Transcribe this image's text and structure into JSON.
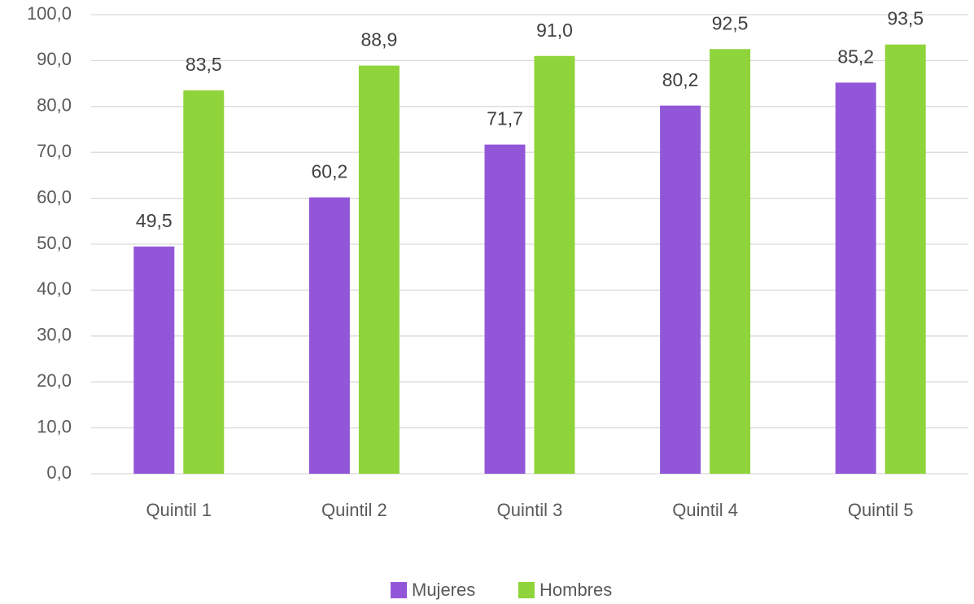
{
  "chart_data": {
    "type": "bar",
    "categories": [
      "Quintil 1",
      "Quintil 2",
      "Quintil 3",
      "Quintil 4",
      "Quintil 5"
    ],
    "series": [
      {
        "name": "Mujeres",
        "color": "#9257d8",
        "values": [
          49.5,
          60.2,
          71.7,
          80.2,
          85.2
        ],
        "value_labels": [
          "49,5",
          "60,2",
          "71,7",
          "80,2",
          "85,2"
        ]
      },
      {
        "name": "Hombres",
        "color": "#8fd43a",
        "values": [
          83.5,
          88.9,
          91.0,
          92.5,
          93.5
        ],
        "value_labels": [
          "83,5",
          "88,9",
          "91,0",
          "92,5",
          "93,5"
        ]
      }
    ],
    "ylim": [
      0,
      100
    ],
    "yticks": [
      {
        "value": 0,
        "label": "0,0"
      },
      {
        "value": 10,
        "label": "10,0"
      },
      {
        "value": 20,
        "label": "20,0"
      },
      {
        "value": 30,
        "label": "30,0"
      },
      {
        "value": 40,
        "label": "40,0"
      },
      {
        "value": 50,
        "label": "50,0"
      },
      {
        "value": 60,
        "label": "60,0"
      },
      {
        "value": 70,
        "label": "70,0"
      },
      {
        "value": 80,
        "label": "80,0"
      },
      {
        "value": 90,
        "label": "90,0"
      },
      {
        "value": 100,
        "label": "100,0"
      }
    ],
    "grid": true,
    "legend": "bottom"
  }
}
